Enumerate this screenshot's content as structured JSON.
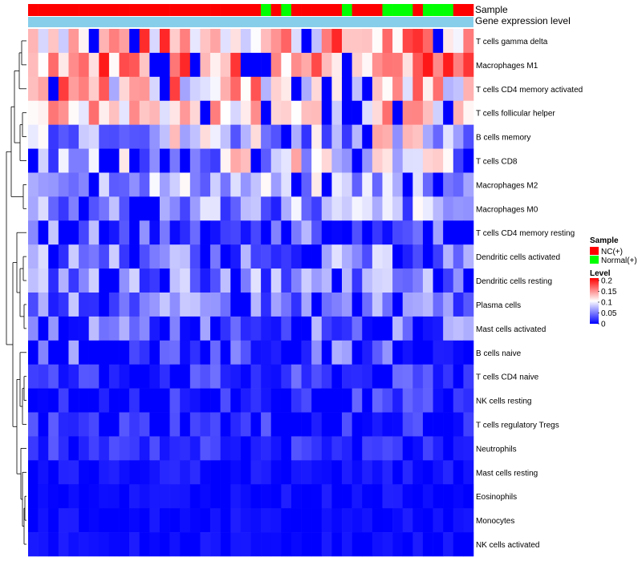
{
  "chart_data": {
    "type": "heatmap",
    "annotation_tracks": [
      {
        "name": "Sample"
      },
      {
        "name": "Gene expression level"
      }
    ],
    "sample_groups": [
      "NC",
      "NC",
      "NC",
      "NC",
      "NC",
      "NC",
      "NC",
      "NC",
      "NC",
      "NC",
      "NC",
      "NC",
      "NC",
      "NC",
      "NC",
      "NC",
      "NC",
      "NC",
      "NC",
      "NC",
      "NC",
      "NC",
      "NC",
      "Normal",
      "NC",
      "Normal",
      "NC",
      "NC",
      "NC",
      "NC",
      "NC",
      "Normal",
      "NC",
      "NC",
      "NC",
      "Normal",
      "Normal",
      "Normal",
      "NC",
      "Normal",
      "Normal",
      "Normal",
      "NC",
      "NC"
    ],
    "rows": [
      "T cells gamma delta",
      "Macrophages M1",
      "T cells CD4 memory activated",
      "T cells follicular helper",
      "B cells memory",
      "T cells CD8",
      "Macrophages M2",
      "Macrophages M0",
      "T cells CD4 memory resting",
      "Dendritic cells activated",
      "Dendritic cells resting",
      "Plasma cells",
      "Mast cells activated",
      "B cells naive",
      "T cells CD4 naive",
      "NK cells resting",
      "T cells regulatory  Tregs",
      "Neutrophils",
      "Mast cells resting",
      "Eosinophils",
      "Monocytes",
      "NK cells activated"
    ],
    "n_columns": 44,
    "color_scale": {
      "low": "#0000ff",
      "mid": "#ffffff",
      "high": "#ff0000",
      "min": 0,
      "mid_value": 0.1,
      "max": 0.2
    },
    "legend": {
      "sample_title": "Sample",
      "sample_entries": [
        {
          "label": "NC(+)",
          "color": "#ff0000"
        },
        {
          "label": "Normal(+)",
          "color": "#00ff00"
        }
      ],
      "level_title": "Level",
      "level_ticks": [
        "0.2",
        "0.15",
        "0.1",
        "0.05",
        "0"
      ]
    },
    "track_colors": {
      "NC": "#ff0000",
      "Normal": "#00ff00",
      "expression": "#87ceeb"
    },
    "row_patterns": [
      {
        "base": 0.13,
        "amp": 0.06
      },
      {
        "base": 0.15,
        "amp": 0.05
      },
      {
        "base": 0.12,
        "amp": 0.06
      },
      {
        "base": 0.12,
        "amp": 0.04
      },
      {
        "base": 0.08,
        "amp": 0.06
      },
      {
        "base": 0.08,
        "amp": 0.06
      },
      {
        "base": 0.07,
        "amp": 0.04
      },
      {
        "base": 0.06,
        "amp": 0.05
      },
      {
        "base": 0.03,
        "amp": 0.05
      },
      {
        "base": 0.05,
        "amp": 0.04
      },
      {
        "base": 0.05,
        "amp": 0.04
      },
      {
        "base": 0.045,
        "amp": 0.035
      },
      {
        "base": 0.035,
        "amp": 0.04
      },
      {
        "base": 0.02,
        "amp": 0.05
      },
      {
        "base": 0.015,
        "amp": 0.03
      },
      {
        "base": 0.012,
        "amp": 0.03
      },
      {
        "base": 0.012,
        "amp": 0.03
      },
      {
        "base": 0.02,
        "amp": 0.015
      },
      {
        "base": 0.008,
        "amp": 0.01
      },
      {
        "base": 0.005,
        "amp": 0.008
      },
      {
        "base": 0.004,
        "amp": 0.008
      },
      {
        "base": 0.004,
        "amp": 0.008
      }
    ]
  }
}
